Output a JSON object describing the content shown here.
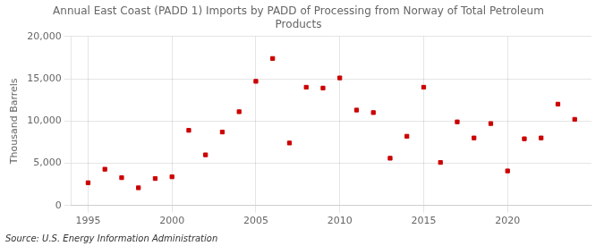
{
  "chart_data": {
    "type": "scatter",
    "title": "Annual East Coast (PADD 1) Imports by PADD of Processing from Norway of Total Petroleum\nProducts",
    "ylabel": "Thousand Barrels",
    "annotation": "Source: U.S. Energy Information Administration",
    "x": [
      1995,
      1996,
      1997,
      1998,
      1999,
      2000,
      2001,
      2002,
      2003,
      2004,
      2005,
      2006,
      2007,
      2008,
      2009,
      2010,
      2011,
      2012,
      2013,
      2014,
      2015,
      2016,
      2017,
      2018,
      2019,
      2020,
      2021,
      2022,
      2023,
      2024
    ],
    "values": [
      2700,
      4300,
      3300,
      2100,
      3200,
      3400,
      8900,
      6000,
      8700,
      11100,
      14700,
      17400,
      7400,
      14000,
      13900,
      15100,
      11300,
      11000,
      5600,
      8200,
      14000,
      5100,
      9900,
      8000,
      9700,
      4100,
      7900,
      8000,
      12000,
      10200
    ],
    "color": "#cc0000",
    "marker": "square",
    "xlim": [
      1994,
      2025
    ],
    "ylim": [
      0,
      20000
    ],
    "xticks": [
      1995,
      2000,
      2005,
      2010,
      2015,
      2020
    ],
    "yticks": [
      0,
      {
        "value": 5000,
        "label": "5,000"
      },
      {
        "value": 10000,
        "label": "10,000"
      },
      {
        "value": 15000,
        "label": "15,000"
      },
      {
        "value": 20000,
        "label": "20,000"
      }
    ],
    "grid": true
  }
}
